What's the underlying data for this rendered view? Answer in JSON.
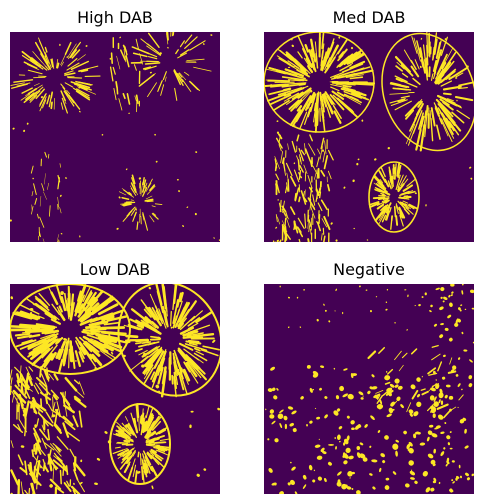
{
  "colors": {
    "background": "#440154",
    "foreground": "#fde725"
  },
  "panels": [
    {
      "id": "high-dab",
      "title": "High DAB"
    },
    {
      "id": "med-dab",
      "title": "Med DAB"
    },
    {
      "id": "low-dab",
      "title": "Low DAB"
    },
    {
      "id": "negative",
      "title": "Negative"
    }
  ]
}
